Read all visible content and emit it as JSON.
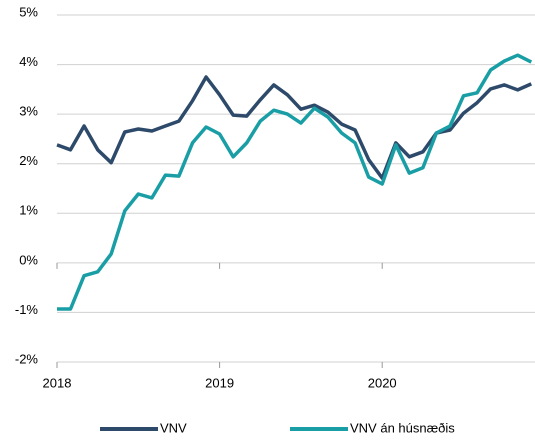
{
  "chart_data": {
    "type": "line",
    "categories": [
      "2018",
      null,
      null,
      null,
      null,
      null,
      null,
      null,
      null,
      null,
      null,
      null,
      "2019",
      null,
      null,
      null,
      null,
      null,
      null,
      null,
      null,
      null,
      null,
      null,
      "2020",
      null,
      null,
      null,
      null,
      null,
      null,
      null,
      null,
      null,
      null,
      null
    ],
    "series": [
      {
        "name": "VNV",
        "color": "#2e4a6b",
        "values": [
          2.38,
          2.28,
          2.76,
          2.28,
          2.02,
          2.64,
          2.7,
          2.66,
          2.76,
          2.86,
          3.27,
          3.75,
          3.39,
          2.98,
          2.96,
          3.29,
          3.59,
          3.39,
          3.1,
          3.18,
          3.04,
          2.8,
          2.68,
          2.08,
          1.71,
          2.42,
          2.14,
          2.24,
          2.62,
          2.68,
          3.02,
          3.23,
          3.51,
          3.59,
          3.49,
          3.61
        ]
      },
      {
        "name": "VNV án húsnæðis",
        "color": "#1a9ea5",
        "values": [
          -0.93,
          -0.93,
          -0.26,
          -0.18,
          0.18,
          1.05,
          1.39,
          1.31,
          1.77,
          1.75,
          2.42,
          2.74,
          2.6,
          2.14,
          2.42,
          2.86,
          3.08,
          3.0,
          2.82,
          3.12,
          2.94,
          2.62,
          2.42,
          1.73,
          1.59,
          2.38,
          1.81,
          1.92,
          2.62,
          2.76,
          3.37,
          3.43,
          3.89,
          4.07,
          4.19,
          4.05
        ]
      }
    ],
    "ylim": [
      -2,
      5
    ],
    "yticks": [
      {
        "value": -2,
        "label": "-2%"
      },
      {
        "value": -1,
        "label": "-1%"
      },
      {
        "value": 0,
        "label": "0%"
      },
      {
        "value": 1,
        "label": "1%"
      },
      {
        "value": 2,
        "label": "2%"
      },
      {
        "value": 3,
        "label": "3%"
      },
      {
        "value": 4,
        "label": "4%"
      },
      {
        "value": 5,
        "label": "5%"
      }
    ],
    "grid": true,
    "legend": "bottom"
  }
}
